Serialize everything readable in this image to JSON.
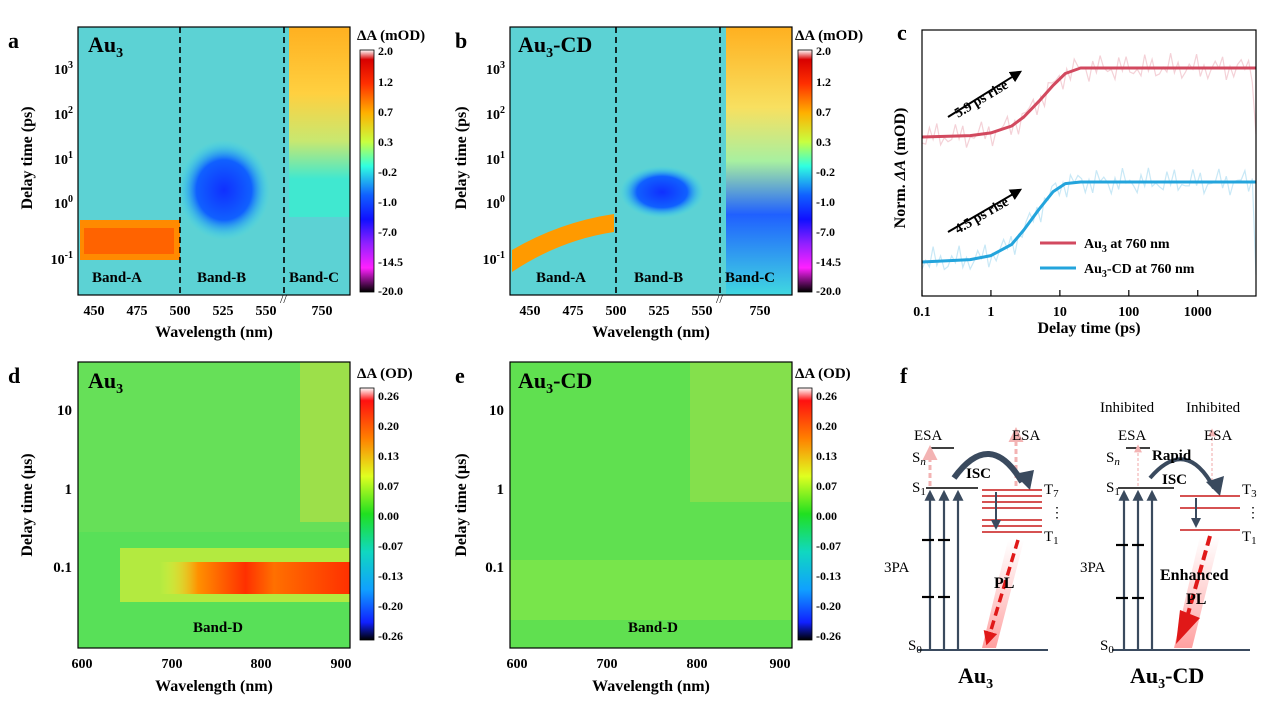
{
  "panels": {
    "a": {
      "letter": "a",
      "sample": "Au",
      "sub": "3",
      "suffix": ""
    },
    "b": {
      "letter": "b",
      "sample": "Au",
      "sub": "3",
      "suffix": "-CD"
    },
    "c": {
      "letter": "c"
    },
    "d": {
      "letter": "d",
      "sample": "Au",
      "sub": "3",
      "suffix": ""
    },
    "e": {
      "letter": "e",
      "sample": "Au",
      "sub": "3",
      "suffix": "-CD"
    },
    "f": {
      "letter": "f"
    }
  },
  "chart_data": [
    {
      "id": "a",
      "type": "heatmap",
      "title": "Au3",
      "xlabel": "Wavelength (nm)",
      "ylabel": "Delay time (ps)",
      "xticks_left": [
        "450",
        "475",
        "500",
        "525",
        "550"
      ],
      "xticks_right": [
        "750"
      ],
      "yticks": [
        "10^-1",
        "10^0",
        "10^1",
        "10^2",
        "10^3"
      ],
      "bands": [
        "Band-A",
        "Band-B",
        "Band-C"
      ],
      "colorbar": {
        "label": "ΔA (mOD)",
        "ticks": [
          "2.0",
          "1.2",
          "0.7",
          "0.3",
          "-0.2",
          "-1.0",
          "-7.0",
          "-14.5",
          "-20.0"
        ]
      }
    },
    {
      "id": "b",
      "type": "heatmap",
      "title": "Au3-CD",
      "xlabel": "Wavelength (nm)",
      "ylabel": "Delay time (ps)",
      "xticks_left": [
        "450",
        "475",
        "500",
        "525",
        "550"
      ],
      "xticks_right": [
        "750"
      ],
      "yticks": [
        "10^-1",
        "10^0",
        "10^1",
        "10^2",
        "10^3"
      ],
      "bands": [
        "Band-A",
        "Band-B",
        "Band-C"
      ],
      "colorbar": {
        "label": "ΔA (mOD)",
        "ticks": [
          "2.0",
          "1.2",
          "0.7",
          "0.3",
          "-0.2",
          "-1.0",
          "-7.0",
          "-14.5",
          "-20.0"
        ]
      }
    },
    {
      "id": "c",
      "type": "line",
      "xlabel": "Delay time (ps)",
      "ylabel": "Norm. ΔA (mOD)",
      "xscale": "log",
      "xlim": [
        0.1,
        7000
      ],
      "xticks": [
        "0.1",
        "1",
        "10",
        "100",
        "1000"
      ],
      "series": [
        {
          "name": "Au3 at 760 nm",
          "color": "#d2495f",
          "rise": "5.9 ps rise",
          "x": [
            0.1,
            0.5,
            1,
            2,
            3,
            5,
            8,
            12,
            20,
            40,
            100,
            1000,
            7000
          ],
          "y": [
            0.0,
            0.02,
            0.06,
            0.16,
            0.29,
            0.52,
            0.75,
            0.92,
            1.0,
            1.0,
            1.0,
            1.0,
            1.0
          ]
        },
        {
          "name": "Au3-CD at 760 nm",
          "color": "#23a4dc",
          "rise": "4.5 ps rise",
          "x": [
            0.1,
            0.5,
            1,
            2,
            3,
            5,
            8,
            12,
            20,
            40,
            100,
            1000,
            7000
          ],
          "y": [
            0.0,
            0.03,
            0.08,
            0.22,
            0.4,
            0.66,
            0.88,
            0.98,
            1.0,
            1.0,
            1.0,
            1.0,
            1.0
          ]
        }
      ],
      "legend": [
        "Au3 at 760 nm",
        "Au3-CD at 760 nm"
      ]
    },
    {
      "id": "d",
      "type": "heatmap",
      "title": "Au3",
      "xlabel": "Wavelength (nm)",
      "ylabel": "Delay time (μs)",
      "xticks": [
        "600",
        "700",
        "800",
        "900"
      ],
      "yticks": [
        "0.1",
        "1",
        "10"
      ],
      "bands": [
        "Band-D"
      ],
      "colorbar": {
        "label": "ΔA (OD)",
        "ticks": [
          "0.26",
          "0.20",
          "0.13",
          "0.07",
          "0.00",
          "-0.07",
          "-0.13",
          "-0.20",
          "-0.26"
        ]
      }
    },
    {
      "id": "e",
      "type": "heatmap",
      "title": "Au3-CD",
      "xlabel": "Wavelength (nm)",
      "ylabel": "Delay time (μs)",
      "xticks": [
        "600",
        "700",
        "800",
        "900"
      ],
      "yticks": [
        "0.1",
        "1",
        "10"
      ],
      "bands": [
        "Band-D"
      ],
      "colorbar": {
        "label": "ΔA (OD)",
        "ticks": [
          "0.26",
          "0.20",
          "0.13",
          "0.07",
          "0.00",
          "-0.07",
          "-0.13",
          "-0.20",
          "-0.26"
        ]
      }
    }
  ],
  "diagram_f": {
    "left": {
      "esa1": "ESA",
      "esa2": "ESA",
      "sn": "S",
      "sn_sub": "n",
      "s1": "S",
      "s1_sub": "1",
      "s0": "S",
      "s0_sub": "0",
      "t_top": "T",
      "t_top_sub": "7",
      "t_bot": "T",
      "t_bot_sub": "1",
      "isc": "ISC",
      "tpa": "3PA",
      "pl": "PL",
      "name": "Au",
      "name_sub": "3",
      "name_suffix": ""
    },
    "right": {
      "inhib1": "Inhibited",
      "esa1": "ESA",
      "inhib2": "Inhibited",
      "esa2": "ESA",
      "sn": "S",
      "sn_sub": "n",
      "s1": "S",
      "s1_sub": "1",
      "s0": "S",
      "s0_sub": "0",
      "t_top": "T",
      "t_top_sub": "3",
      "t_bot": "T",
      "t_bot_sub": "1",
      "rapid": "Rapid",
      "isc": "ISC",
      "tpa": "3PA",
      "enh1": "Enhanced",
      "enh2": "PL",
      "name": "Au",
      "name_sub": "3",
      "name_suffix": "-CD"
    }
  }
}
